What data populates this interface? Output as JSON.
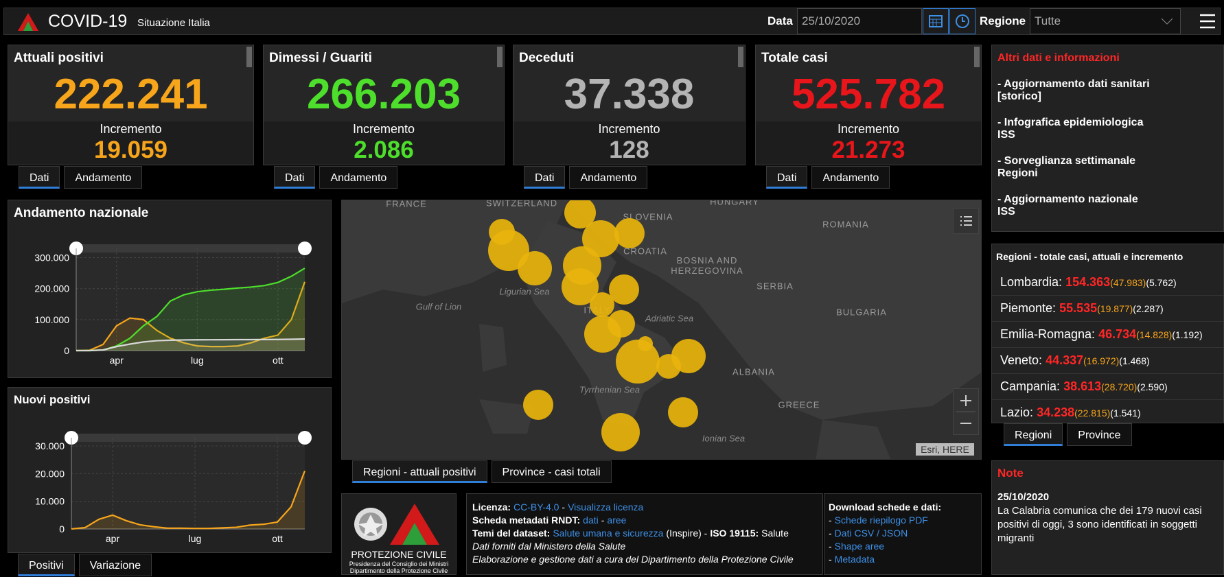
{
  "header": {
    "title": "COVID-19",
    "subtitle": "Situazione Italia",
    "date_label": "Data",
    "date": "25/10/2020",
    "region_label": "Regione",
    "region": "Tutte"
  },
  "cards": [
    {
      "title": "Attuali positivi",
      "value": "222.241",
      "increment_label": "Incremento",
      "increment": "19.059",
      "color": "#f7a51b",
      "tabs": [
        "Dati",
        "Andamento"
      ]
    },
    {
      "title": "Dimessi / Guariti",
      "value": "266.203",
      "increment_label": "Incremento",
      "increment": "2.086",
      "color": "#4ddf2c",
      "tabs": [
        "Dati",
        "Andamento"
      ]
    },
    {
      "title": "Deceduti",
      "value": "37.338",
      "increment_label": "Incremento",
      "increment": "128",
      "color": "#b4b4b4",
      "tabs": [
        "Dati",
        "Andamento"
      ]
    },
    {
      "title": "Totale casi",
      "value": "525.782",
      "increment_label": "Incremento",
      "increment": "21.273",
      "color": "#e8161b",
      "tabs": [
        "Dati",
        "Andamento"
      ]
    }
  ],
  "charts": [
    {
      "type": "line",
      "title": "Andamento nazionale",
      "categories": [
        null,
        null,
        null,
        "apr",
        null,
        null,
        null,
        null,
        null,
        "lug",
        null,
        null,
        null,
        null,
        null,
        "ott",
        null,
        null
      ],
      "series": [
        {
          "color": "#f7a51b",
          "values": [
            0,
            1000,
            20000,
            80000,
            105000,
            100000,
            65000,
            40000,
            25000,
            15000,
            13000,
            13000,
            15000,
            25000,
            40000,
            50000,
            100000,
            222000
          ]
        },
        {
          "color": "#4ddf2c",
          "values": [
            0,
            0,
            2000,
            15000,
            40000,
            80000,
            110000,
            160000,
            180000,
            190000,
            195000,
            198000,
            202000,
            205000,
            210000,
            220000,
            240000,
            266000
          ]
        },
        {
          "color": "#d8d8d8",
          "values": [
            0,
            30,
            2000,
            13000,
            21000,
            28000,
            32000,
            33500,
            34500,
            34800,
            35000,
            35200,
            35400,
            35500,
            35700,
            36000,
            36500,
            37300
          ]
        }
      ],
      "ylim": [
        0,
        330000
      ],
      "yticks": [
        {
          "value": 0,
          "label": "0"
        },
        {
          "value": 100000,
          "label": "100.000"
        },
        {
          "value": 200000,
          "label": "200.000"
        },
        {
          "value": 300000,
          "label": "300.000"
        }
      ],
      "grid": true
    },
    {
      "type": "line",
      "title": "Nuovi positivi",
      "categories": [
        null,
        null,
        null,
        "apr",
        null,
        null,
        null,
        null,
        null,
        "lug",
        null,
        null,
        null,
        null,
        null,
        "ott",
        null,
        null
      ],
      "series": [
        {
          "color": "#f7a51b",
          "values": [
            0,
            500,
            3500,
            5000,
            3000,
            1500,
            800,
            300,
            300,
            200,
            200,
            400,
            600,
            1400,
            1700,
            2500,
            8000,
            21000
          ]
        }
      ],
      "ylim": [
        0,
        33000
      ],
      "yticks": [
        {
          "value": 0,
          "label": "0"
        },
        {
          "value": 10000,
          "label": "10.000"
        },
        {
          "value": 20000,
          "label": "20.000"
        },
        {
          "value": 30000,
          "label": "30.000"
        }
      ],
      "grid": true,
      "tabs": [
        "Positivi",
        "Variazione"
      ]
    }
  ],
  "map": {
    "labels": [
      "FRANCE",
      "SWITZERLAND",
      "SLOVENIA",
      "HUNGARY",
      "ROMANIA",
      "CROATIA",
      "BOSNIA AND HERZEGOVINA",
      "SERBIA",
      "BULGARIA",
      "Gulf of Lion",
      "Ligurian Sea",
      "ITALY",
      "Adriatic Sea",
      "ALBANIA",
      "GREECE",
      "Tyrrhenian Sea",
      "Ionian Sea"
    ],
    "attribution": "Esri, HERE",
    "tabs": [
      "Regioni - attuali positivi",
      "Province - casi totali"
    ]
  },
  "links": {
    "title": "Altri dati e informazioni",
    "items": [
      "- Aggiornamento dati sanitari [storico]",
      "- Infografica epidemiologica ISS",
      "- Sorveglianza settimanale Regioni",
      "- Aggiornamento nazionale ISS"
    ]
  },
  "regions": {
    "title": "Regioni - totale casi, attuali e incremento",
    "rows": [
      {
        "name": "Lombardia:",
        "total": "154.363",
        "current": "(47.983)",
        "increment": "(5.762)"
      },
      {
        "name": "Piemonte:",
        "total": "55.535",
        "current": "(19.877)",
        "increment": "(2.287)"
      },
      {
        "name": "Emilia-Romagna:",
        "total": "46.734",
        "current": "(14.828)",
        "increment": "(1.192)"
      },
      {
        "name": "Veneto:",
        "total": "44.337",
        "current": "(16.972)",
        "increment": "(1.468)"
      },
      {
        "name": "Campania:",
        "total": "38.613",
        "current": "(28.720)",
        "increment": "(2.590)"
      },
      {
        "name": "Lazio:",
        "total": "34.238",
        "current": "(22.815)",
        "increment": "(1.541)"
      }
    ],
    "tabs": [
      "Regioni",
      "Province"
    ]
  },
  "note": {
    "title": "Note",
    "date": "25/10/2020",
    "text": "La Calabria comunica che dei 179 nuovi casi positivi di oggi, 3 sono identificati in soggetti migranti"
  },
  "footer": {
    "logo": [
      "PROTEZIONE CIVILE",
      "Presidenza del Consiglio dei Ministri",
      "Dipartimento della Protezione Civile"
    ],
    "license": [
      [
        {
          "text": "Licenza:",
          "style": "bold"
        },
        {
          "text": "CC-BY-4.0",
          "style": "link"
        },
        {
          "text": "-",
          "style": "plain"
        },
        {
          "text": "Visualizza licenza",
          "style": "link"
        }
      ],
      [
        {
          "text": "Scheda metadati RNDT:",
          "style": "bold"
        },
        {
          "text": "dati",
          "style": "link"
        },
        {
          "text": "-",
          "style": "plain"
        },
        {
          "text": "aree",
          "style": "link"
        }
      ],
      [
        {
          "text": "Temi del dataset:",
          "style": "bold"
        },
        {
          "text": "Salute umana e sicurezza",
          "style": "link"
        },
        {
          "text": "(Inspire) -",
          "style": "plain"
        },
        {
          "text": "ISO 19115:",
          "style": "bold"
        },
        {
          "text": "Salute",
          "style": "plain"
        }
      ],
      [
        {
          "text": "Dati forniti dal Ministero della Salute",
          "style": "italic"
        }
      ],
      [
        {
          "text": "Elaborazione e gestione dati a cura del Dipartimento della Protezione Civile",
          "style": "italic"
        }
      ]
    ],
    "download": {
      "title": "Download schede e dati:",
      "bullet": "-",
      "items": [
        "Schede riepilogo PDF",
        "Dati CSV / JSON",
        "Shape aree",
        "Metadata"
      ]
    }
  }
}
